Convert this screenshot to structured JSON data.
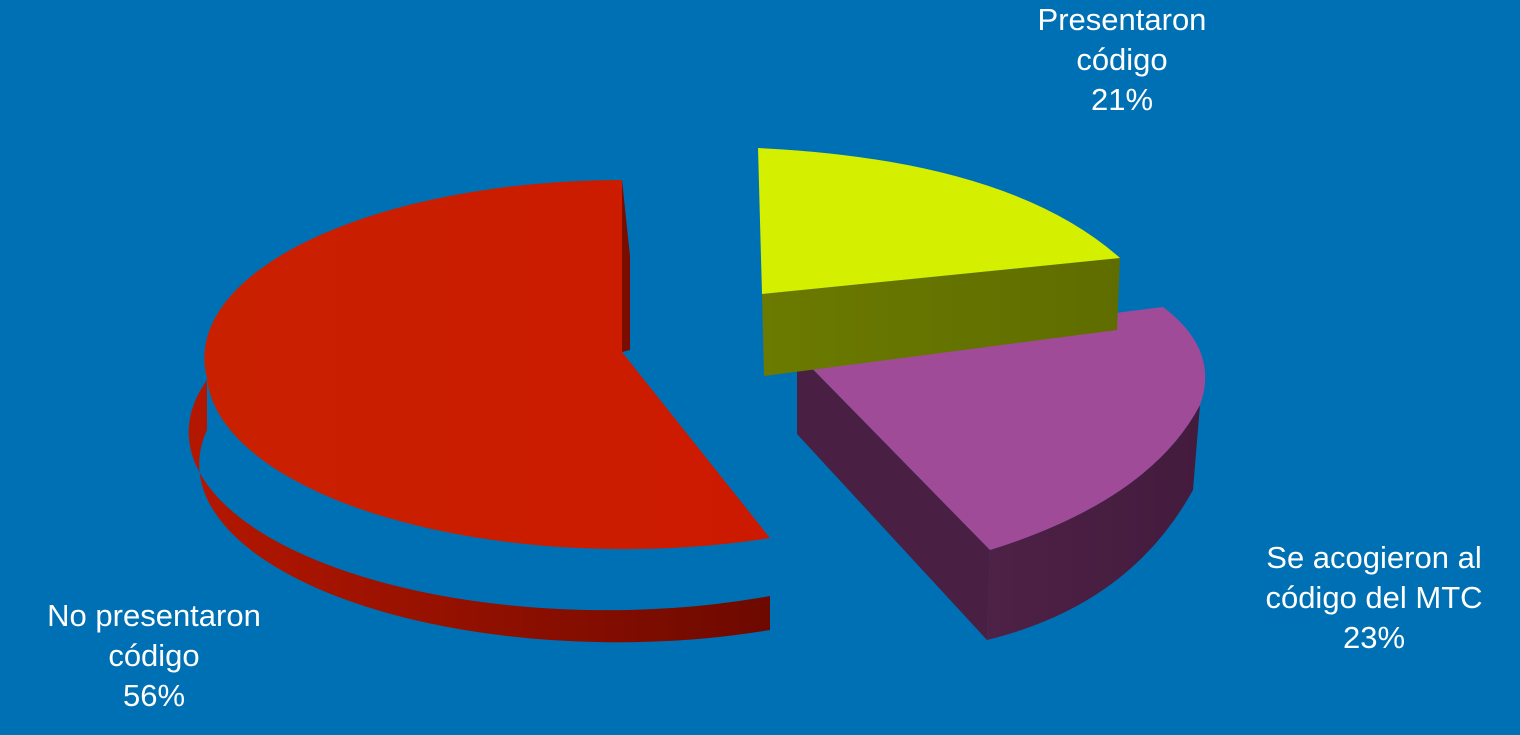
{
  "chart_data": {
    "type": "pie",
    "style": "3d-exploded",
    "slices": [
      {
        "label": "Presentaron código",
        "value": 21,
        "display_value": "21%",
        "color": "#d4ef00",
        "side_color": "#667200"
      },
      {
        "label": "Se acogieron al código del MTC",
        "value": 23,
        "display_value": "23%",
        "color": "#a04b98",
        "side_color": "#4a1f44"
      },
      {
        "label": "No presentaron código",
        "value": 56,
        "display_value": "56%",
        "color": "#c91c00",
        "side_color": "#8f1200"
      }
    ]
  },
  "labels": {
    "yellow": {
      "line1": "Presentaron",
      "line2": "código",
      "pct": "21%"
    },
    "purple": {
      "line1": "Se acogieron al",
      "line2": "código del MTC",
      "pct": "23%"
    },
    "red": {
      "line1": "No presentaron",
      "line2": "código",
      "pct": "56%"
    }
  },
  "background_color": "#0070b4"
}
